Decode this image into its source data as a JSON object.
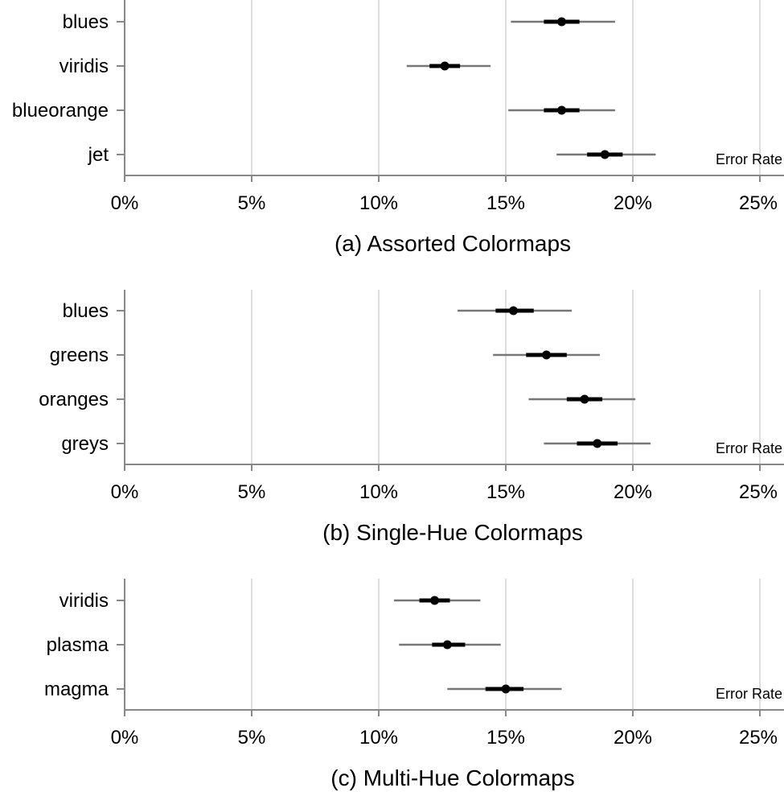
{
  "colors": {
    "grid": "#dddddd",
    "axis": "#888888",
    "ci_outer": "#777777",
    "ci_inner": "#000000",
    "point": "#000000"
  },
  "chart_data": [
    {
      "type": "scatter",
      "caption": "(a) Assorted Colormaps",
      "x_unit_label": "Error Rate",
      "xlim": [
        0,
        26
      ],
      "x_ticks": [
        "0%",
        "5%",
        "10%",
        "15%",
        "20%",
        "25%"
      ],
      "x_tick_values": [
        0,
        5,
        10,
        15,
        20,
        25
      ],
      "grid": true,
      "categories": [
        "blues",
        "viridis",
        "blueorange",
        "jet"
      ],
      "values": [
        17.2,
        12.6,
        17.2,
        18.9
      ],
      "ci_outer": [
        [
          15.2,
          19.3
        ],
        [
          11.1,
          14.4
        ],
        [
          15.1,
          19.3
        ],
        [
          17.0,
          20.9
        ]
      ],
      "ci_inner": [
        [
          16.5,
          17.9
        ],
        [
          12.0,
          13.2
        ],
        [
          16.5,
          17.9
        ],
        [
          18.2,
          19.6
        ]
      ]
    },
    {
      "type": "scatter",
      "caption": "(b) Single-Hue Colormaps",
      "x_unit_label": "Error Rate",
      "xlim": [
        0,
        26
      ],
      "x_ticks": [
        "0%",
        "5%",
        "10%",
        "15%",
        "20%",
        "25%"
      ],
      "x_tick_values": [
        0,
        5,
        10,
        15,
        20,
        25
      ],
      "grid": true,
      "categories": [
        "blues",
        "greens",
        "oranges",
        "greys"
      ],
      "values": [
        15.3,
        16.6,
        18.1,
        18.6
      ],
      "ci_outer": [
        [
          13.1,
          17.6
        ],
        [
          14.5,
          18.7
        ],
        [
          15.9,
          20.1
        ],
        [
          16.5,
          20.7
        ]
      ],
      "ci_inner": [
        [
          14.6,
          16.1
        ],
        [
          15.8,
          17.4
        ],
        [
          17.4,
          18.8
        ],
        [
          17.8,
          19.4
        ]
      ]
    },
    {
      "type": "scatter",
      "caption": "(c) Multi-Hue Colormaps",
      "x_unit_label": "Error Rate",
      "xlim": [
        0,
        26
      ],
      "x_ticks": [
        "0%",
        "5%",
        "10%",
        "15%",
        "20%",
        "25%"
      ],
      "x_tick_values": [
        0,
        5,
        10,
        15,
        20,
        25
      ],
      "grid": true,
      "categories": [
        "viridis",
        "plasma",
        "magma"
      ],
      "values": [
        12.2,
        12.7,
        15.0
      ],
      "ci_outer": [
        [
          10.6,
          14.0
        ],
        [
          10.8,
          14.8
        ],
        [
          12.7,
          17.2
        ]
      ],
      "ci_inner": [
        [
          11.6,
          12.8
        ],
        [
          12.1,
          13.4
        ],
        [
          14.2,
          15.7
        ]
      ]
    }
  ]
}
